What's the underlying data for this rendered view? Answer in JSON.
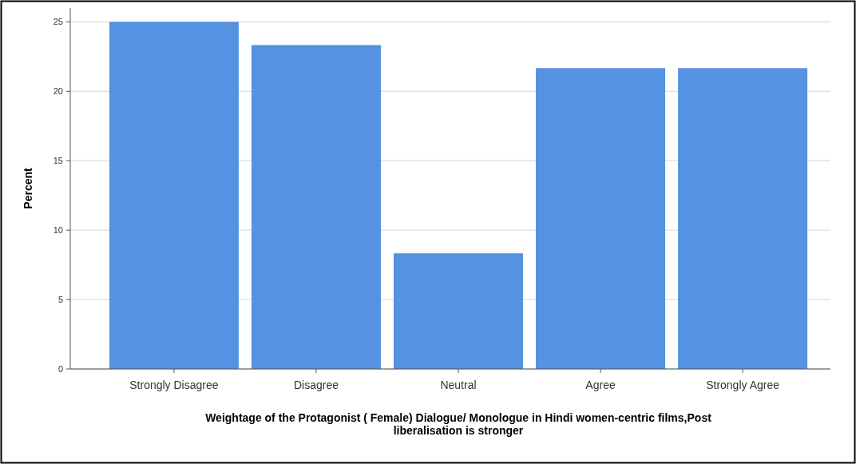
{
  "chart_data": {
    "type": "bar",
    "xlabel": "Weightage of the Protagonist ( Female) Dialogue/ Monologue in Hindi women-centric films,Post liberalisation is stronger",
    "ylabel": "Percent",
    "categories": [
      "Strongly Disagree",
      "Disagree",
      "Neutral",
      "Agree",
      "Strongly Agree"
    ],
    "values": [
      25,
      23.33,
      8.33,
      21.67,
      21.67
    ],
    "color": "#5592e2",
    "ylim": [
      0,
      26
    ],
    "yticks": [
      0,
      5,
      10,
      15,
      20,
      25
    ],
    "grid": "y"
  }
}
